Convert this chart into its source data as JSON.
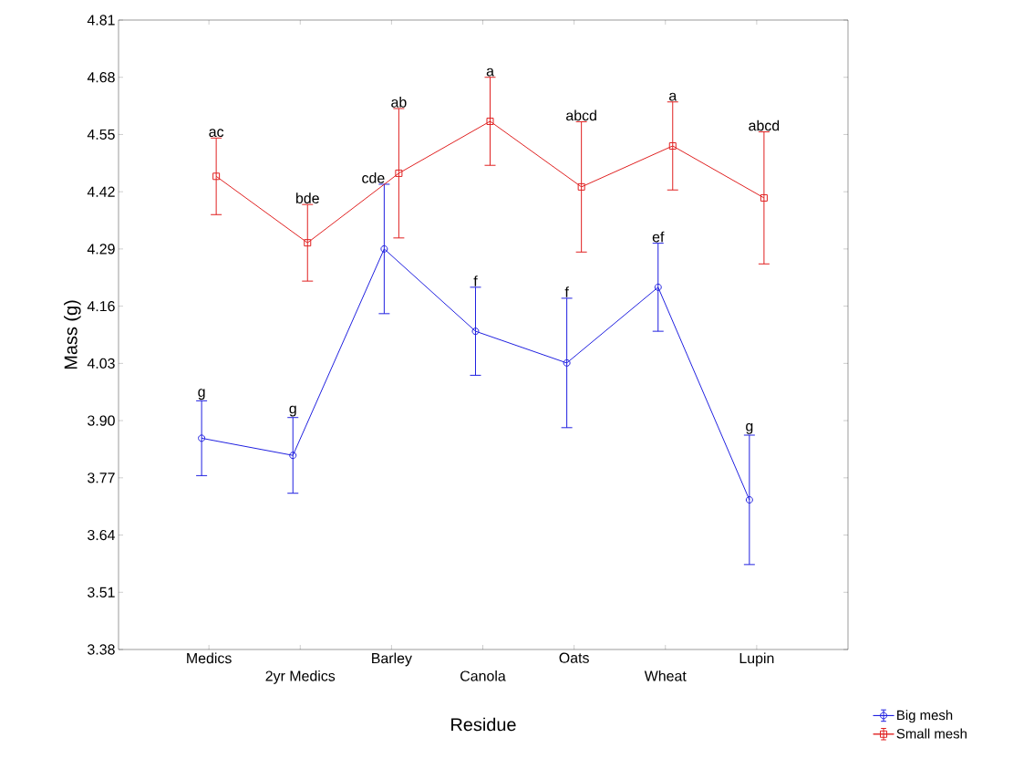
{
  "chart_data": {
    "type": "line",
    "xlabel": "Residue",
    "ylabel": "Mass (g)",
    "categories": [
      "Medics",
      "2yr Medics",
      "Barley",
      "Canola",
      "Oats",
      "Wheat",
      "Lupin"
    ],
    "series": [
      {
        "name": "Big mesh",
        "color": "#2020e0",
        "marker": "circle",
        "values": [
          3.86,
          3.821,
          4.29,
          4.103,
          4.031,
          4.203,
          3.72
        ],
        "errors": [
          0.085,
          0.086,
          0.147,
          0.1,
          0.147,
          0.1,
          0.147
        ]
      },
      {
        "name": "Small mesh",
        "color": "#e02020",
        "marker": "square",
        "values": [
          4.455,
          4.304,
          4.462,
          4.58,
          4.431,
          4.524,
          4.406
        ],
        "errors": [
          0.087,
          0.087,
          0.147,
          0.1,
          0.148,
          0.1,
          0.15
        ]
      }
    ],
    "ylim": [
      3.38,
      4.81
    ],
    "yticks": [
      3.38,
      3.51,
      3.64,
      3.77,
      {
        "value": 3.9,
        "label": "3.90"
      },
      4.03,
      4.16,
      4.29,
      4.42,
      4.55,
      4.68,
      4.81
    ],
    "legend": "bottom right",
    "grid": false,
    "line_style": "solid",
    "annotations": [
      {
        "text": "g",
        "x": "Medics",
        "y": 3.945
      },
      {
        "text": "g",
        "x": "2yr Medics",
        "y": 3.907
      },
      {
        "text": "cde",
        "x": "Barley",
        "y": 4.437
      },
      {
        "text": "f",
        "x": "Canola",
        "y": 4.203
      },
      {
        "text": "f",
        "x": "Oats",
        "y": 4.178
      },
      {
        "text": "ef",
        "x": "Wheat",
        "y": 4.303
      },
      {
        "text": "g",
        "x": "Lupin",
        "y": 3.867
      },
      {
        "text": "ac",
        "x": "Medics",
        "y": 4.542
      },
      {
        "text": "bde",
        "x": "2yr Medics",
        "y": 4.391
      },
      {
        "text": "ab",
        "x": "Barley",
        "y": 4.609
      },
      {
        "text": "a",
        "x": "Canola",
        "y": 4.68
      },
      {
        "text": "abcd",
        "x": "Oats",
        "y": 4.579
      },
      {
        "text": "a",
        "x": "Wheat",
        "y": 4.624
      },
      {
        "text": "abcd",
        "x": "Lupin",
        "y": 4.556
      }
    ]
  }
}
